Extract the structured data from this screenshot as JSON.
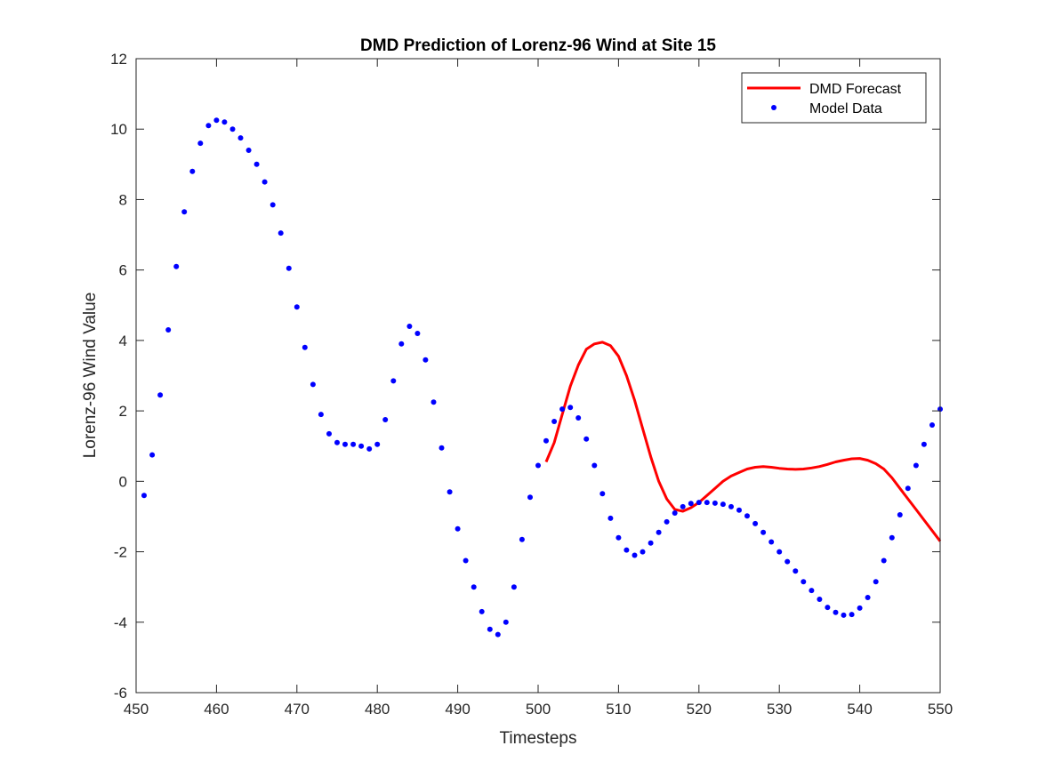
{
  "chart_data": {
    "type": "line",
    "title": "DMD Prediction of Lorenz-96 Wind at Site 15",
    "xlabel": "Timesteps",
    "ylabel": "Lorenz-96 Wind Value",
    "xlim": [
      450,
      550
    ],
    "ylim": [
      -6,
      12
    ],
    "xticks": [
      450,
      460,
      470,
      480,
      490,
      500,
      510,
      520,
      530,
      540,
      550
    ],
    "yticks": [
      -6,
      -4,
      -2,
      0,
      2,
      4,
      6,
      8,
      10,
      12
    ],
    "grid": false,
    "legend_position": "top-right",
    "series": [
      {
        "name": "DMD Forecast",
        "style": "line",
        "color": "#ff0000",
        "x": [
          501,
          502,
          503,
          504,
          505,
          506,
          507,
          508,
          509,
          510,
          511,
          512,
          513,
          514,
          515,
          516,
          517,
          518,
          519,
          520,
          521,
          522,
          523,
          524,
          525,
          526,
          527,
          528,
          529,
          530,
          531,
          532,
          533,
          534,
          535,
          536,
          537,
          538,
          539,
          540,
          541,
          542,
          543,
          544,
          545,
          546,
          547,
          548,
          549,
          550
        ],
        "y": [
          0.55,
          1.1,
          1.9,
          2.7,
          3.3,
          3.75,
          3.9,
          3.95,
          3.85,
          3.55,
          3.0,
          2.3,
          1.5,
          0.7,
          0.0,
          -0.5,
          -0.8,
          -0.85,
          -0.75,
          -0.6,
          -0.4,
          -0.2,
          0.0,
          0.15,
          0.25,
          0.35,
          0.4,
          0.42,
          0.4,
          0.37,
          0.35,
          0.34,
          0.35,
          0.38,
          0.42,
          0.48,
          0.55,
          0.6,
          0.64,
          0.65,
          0.6,
          0.5,
          0.35,
          0.1,
          -0.2,
          -0.5,
          -0.8,
          -1.1,
          -1.4,
          -1.7
        ]
      },
      {
        "name": "Model Data",
        "style": "dots",
        "color": "#0000ff",
        "x": [
          451,
          452,
          453,
          454,
          455,
          456,
          457,
          458,
          459,
          460,
          461,
          462,
          463,
          464,
          465,
          466,
          467,
          468,
          469,
          470,
          471,
          472,
          473,
          474,
          475,
          476,
          477,
          478,
          479,
          480,
          481,
          482,
          483,
          484,
          485,
          486,
          487,
          488,
          489,
          490,
          491,
          492,
          493,
          494,
          495,
          496,
          497,
          498,
          499,
          500,
          501,
          502,
          503,
          504,
          505,
          506,
          507,
          508,
          509,
          510,
          511,
          512,
          513,
          514,
          515,
          516,
          517,
          518,
          519,
          520,
          521,
          522,
          523,
          524,
          525,
          526,
          527,
          528,
          529,
          530,
          531,
          532,
          533,
          534,
          535,
          536,
          537,
          538,
          539,
          540,
          541,
          542,
          543,
          544,
          545,
          546,
          547,
          548,
          549,
          550
        ],
        "y": [
          -0.4,
          0.75,
          2.45,
          4.3,
          6.1,
          7.65,
          8.8,
          9.6,
          10.1,
          10.25,
          10.2,
          10.0,
          9.75,
          9.4,
          9.0,
          8.5,
          7.85,
          7.05,
          6.05,
          4.95,
          3.8,
          2.75,
          1.9,
          1.35,
          1.1,
          1.05,
          1.05,
          1.0,
          0.92,
          1.05,
          1.75,
          2.85,
          3.9,
          4.4,
          4.2,
          3.45,
          2.25,
          0.95,
          -0.3,
          -1.35,
          -2.25,
          -3.0,
          -3.7,
          -4.2,
          -4.35,
          -4.0,
          -3.0,
          -1.65,
          -0.45,
          0.45,
          1.15,
          1.7,
          2.05,
          2.1,
          1.8,
          1.2,
          0.45,
          -0.35,
          -1.05,
          -1.6,
          -1.95,
          -2.1,
          -2.0,
          -1.75,
          -1.45,
          -1.15,
          -0.9,
          -0.72,
          -0.63,
          -0.6,
          -0.6,
          -0.62,
          -0.65,
          -0.72,
          -0.82,
          -0.98,
          -1.2,
          -1.45,
          -1.72,
          -2.0,
          -2.28,
          -2.55,
          -2.85,
          -3.1,
          -3.35,
          -3.58,
          -3.72,
          -3.8,
          -3.78,
          -3.6,
          -3.3,
          -2.85,
          -2.25,
          -1.6,
          -0.95,
          -0.2,
          0.45,
          1.05,
          1.6,
          2.05
        ]
      }
    ]
  }
}
